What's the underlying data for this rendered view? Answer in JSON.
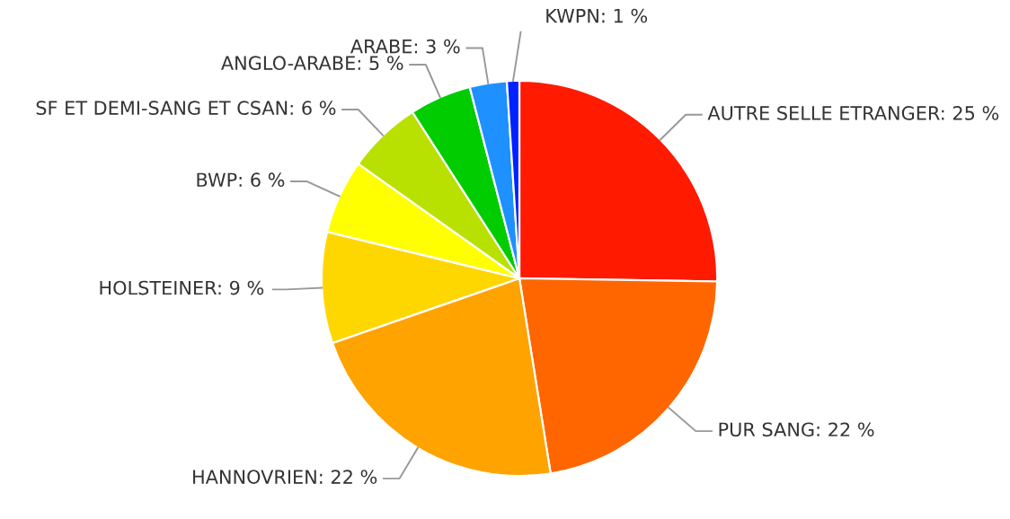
{
  "chart_data": {
    "type": "pie",
    "categories": [
      "AUTRE SELLE ETRANGER",
      "PUR SANG",
      "HANNOVRIEN",
      "HOLSTEINER",
      "BWP",
      "SF ET DEMI-SANG ET CSAN",
      "ANGLO-ARABE",
      "ARABE",
      "KWPN"
    ],
    "values": [
      25,
      22,
      22,
      9,
      6,
      6,
      5,
      3,
      1
    ],
    "value_labels": [
      "25 %",
      "22 %",
      "22 %",
      "9 %",
      "6 %",
      "6 %",
      "5 %",
      "3 %",
      "1 %"
    ],
    "colors": [
      "#ff1a00",
      "#ff6600",
      "#ffa300",
      "#ffd700",
      "#ffff00",
      "#b8e000",
      "#00cc00",
      "#1e90ff",
      "#0022ff"
    ],
    "legend": false
  }
}
